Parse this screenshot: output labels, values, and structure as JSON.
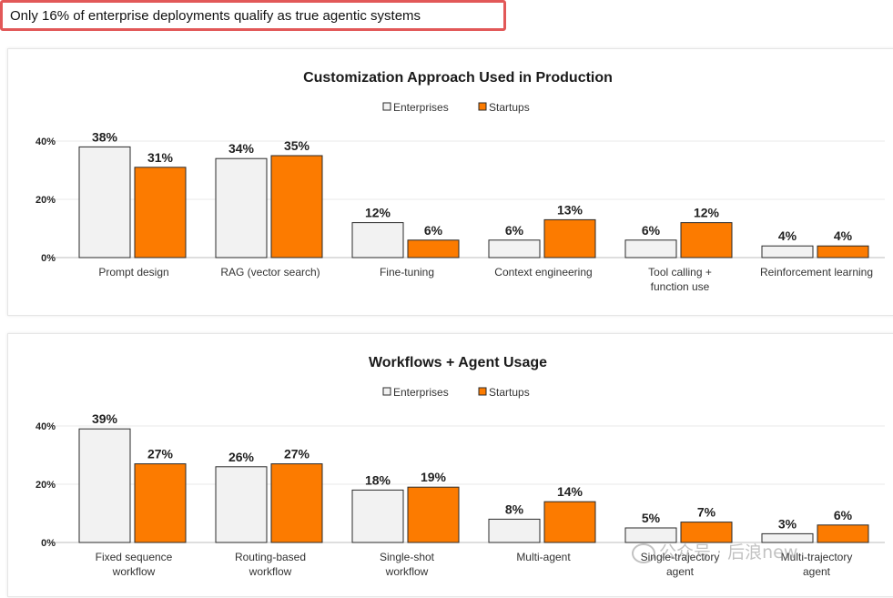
{
  "headline": "Only 16% of enterprise deployments qualify as true agentic systems",
  "watermark": "公众号 · 后浪new",
  "colors": {
    "enterprises": "#f2f2f2",
    "startups": "#fc7b00",
    "bar_stroke": "#2a2a2a",
    "grid": "#e8e8e8",
    "headline_border": "#e25858"
  },
  "chart_data": [
    {
      "type": "bar",
      "title": "Customization Approach Used in Production",
      "legend_position": "top-center",
      "grid": true,
      "ylim": [
        0,
        40
      ],
      "yticks": [
        "0%",
        "20%",
        "40%"
      ],
      "ytick_values": [
        0,
        20,
        40
      ],
      "categories": [
        [
          "Prompt design"
        ],
        [
          "RAG (vector search)"
        ],
        [
          "Fine-tuning"
        ],
        [
          "Context engineering"
        ],
        [
          "Tool calling +",
          "function use"
        ],
        [
          "Reinforcement learning"
        ]
      ],
      "series": [
        {
          "name": "Enterprises",
          "values": [
            38,
            34,
            12,
            6,
            6,
            4
          ],
          "labels": [
            "38%",
            "34%",
            "12%",
            "6%",
            "6%",
            "4%"
          ]
        },
        {
          "name": "Startups",
          "values": [
            31,
            35,
            6,
            13,
            12,
            4
          ],
          "labels": [
            "31%",
            "35%",
            "6%",
            "13%",
            "12%",
            "4%"
          ]
        }
      ]
    },
    {
      "type": "bar",
      "title": "Workflows + Agent Usage",
      "legend_position": "top-center",
      "grid": true,
      "ylim": [
        0,
        40
      ],
      "yticks": [
        "0%",
        "20%",
        "40%"
      ],
      "ytick_values": [
        0,
        20,
        40
      ],
      "categories": [
        [
          "Fixed sequence",
          "workflow"
        ],
        [
          "Routing-based",
          "workflow"
        ],
        [
          "Single-shot",
          "workflow"
        ],
        [
          "Multi-agent"
        ],
        [
          "Single-trajectory",
          "agent"
        ],
        [
          "Multi-trajectory",
          "agent"
        ]
      ],
      "series": [
        {
          "name": "Enterprises",
          "values": [
            39,
            26,
            18,
            8,
            5,
            3
          ],
          "labels": [
            "39%",
            "26%",
            "18%",
            "8%",
            "5%",
            "3%"
          ]
        },
        {
          "name": "Startups",
          "values": [
            27,
            27,
            19,
            14,
            7,
            6
          ],
          "labels": [
            "27%",
            "27%",
            "19%",
            "14%",
            "7%",
            "6%"
          ]
        }
      ]
    }
  ]
}
